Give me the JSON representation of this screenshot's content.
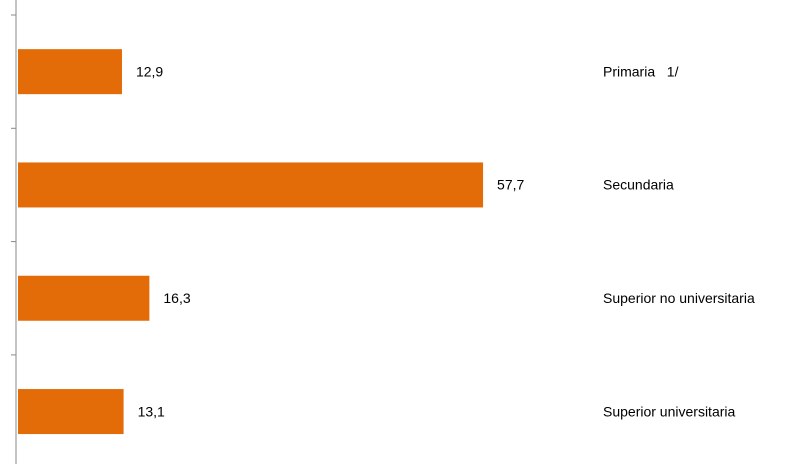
{
  "chart_data": {
    "type": "bar",
    "orientation": "horizontal",
    "categories": [
      "Primaria   1/",
      "Secundaria",
      "Superior no universitaria",
      "Superior universitaria"
    ],
    "values": [
      12.9,
      57.7,
      16.3,
      13.1
    ],
    "value_labels": [
      "12,9",
      "57,7",
      "16,3",
      "13,1"
    ],
    "color": "#e36c09"
  }
}
